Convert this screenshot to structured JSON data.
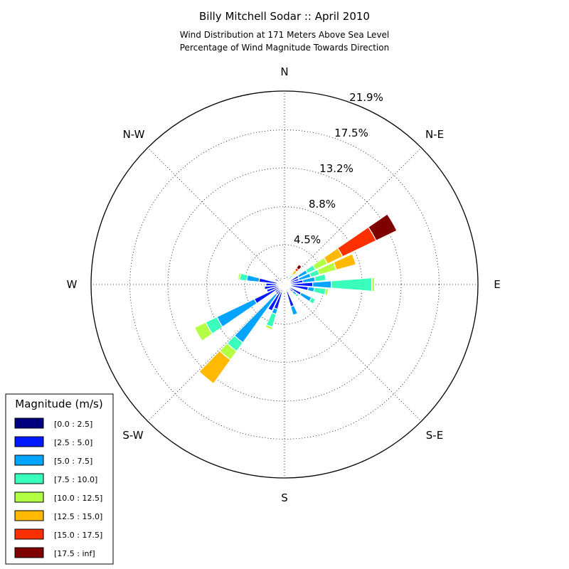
{
  "chart_data": {
    "type": "windrose",
    "title": "Billy Mitchell Sodar :: April 2010",
    "subtitle_lines": [
      "Wind Distribution at 171 Meters Above Sea Level",
      "Percentage of Wind Magnitude Towards Direction"
    ],
    "directions": [
      "N",
      "N-E",
      "E",
      "S-E",
      "S",
      "S-W",
      "W",
      "N-W"
    ],
    "ring_labels": [
      "4.5%",
      "8.8%",
      "13.2%",
      "17.5%",
      "21.9%"
    ],
    "ring_values": [
      4.5,
      8.8,
      13.2,
      17.5,
      21.9
    ],
    "rmax": 21.9,
    "sector_width_deg": 10,
    "legend": {
      "title": "Magnitude (m/s)",
      "bins": [
        {
          "label": "[0.0 : 2.5]",
          "color": "#00007f"
        },
        {
          "label": "[2.5 : 5.0]",
          "color": "#0019ff"
        },
        {
          "label": "[5.0 : 7.5]",
          "color": "#00a4ff"
        },
        {
          "label": "[7.5 : 10.0]",
          "color": "#3affbc"
        },
        {
          "label": "[10.0 : 12.5]",
          "color": "#b2ff43"
        },
        {
          "label": "[12.5 : 15.0]",
          "color": "#ffb900"
        },
        {
          "label": "[15.0 : 17.5]",
          "color": "#ff3000"
        },
        {
          "label": "[17.5 : inf]",
          "color": "#7f0000"
        }
      ]
    },
    "sectors": [
      {
        "bearing": 0,
        "values": [
          0.4,
          0,
          0,
          0,
          0,
          0,
          0,
          0
        ]
      },
      {
        "bearing": 20,
        "values": [
          0.7,
          0.3,
          0,
          0,
          0,
          0,
          0,
          0
        ]
      },
      {
        "bearing": 30,
        "values": [
          0.5,
          0.3,
          0.1,
          0,
          0,
          0,
          0,
          0
        ]
      },
      {
        "bearing": 40,
        "values": [
          0.4,
          0.4,
          0.2,
          0.3,
          0.2,
          0.5,
          0.3,
          0.5
        ]
      },
      {
        "bearing": 60,
        "values": [
          0.8,
          1.0,
          1.1,
          1.0,
          1.5,
          1.9,
          4.2,
          2.6
        ]
      },
      {
        "bearing": 70,
        "values": [
          0.6,
          1.1,
          1.4,
          1.0,
          2.0,
          2.3,
          0,
          0
        ]
      },
      {
        "bearing": 80,
        "values": [
          0.6,
          1.5,
          1.4,
          1.2,
          0,
          0,
          0,
          0
        ]
      },
      {
        "bearing": 90,
        "values": [
          0.8,
          2.4,
          2.1,
          4.6,
          0.3,
          0,
          0,
          0
        ]
      },
      {
        "bearing": 100,
        "values": [
          0.7,
          2.0,
          0.7,
          1.3,
          0.3,
          0,
          0,
          0
        ]
      },
      {
        "bearing": 120,
        "values": [
          0.6,
          1.5,
          1.3,
          0.5,
          0,
          0,
          0,
          0
        ]
      },
      {
        "bearing": 130,
        "values": [
          0.6,
          0.6,
          0.5,
          0.3,
          0,
          0,
          0,
          0
        ]
      },
      {
        "bearing": 150,
        "values": [
          0.5,
          0.3,
          0.1,
          0,
          0,
          0,
          0,
          0
        ]
      },
      {
        "bearing": 160,
        "values": [
          0.8,
          1.8,
          1.0,
          0,
          0,
          0,
          0,
          0
        ]
      },
      {
        "bearing": 180,
        "values": [
          0.5,
          0.3,
          0,
          0,
          0,
          0,
          0,
          0
        ]
      },
      {
        "bearing": 200,
        "values": [
          0.9,
          2.0,
          0.6,
          1.5,
          0.3,
          0,
          0,
          0
        ]
      },
      {
        "bearing": 210,
        "values": [
          0.9,
          2.4,
          0,
          0,
          0,
          0,
          0,
          0
        ]
      },
      {
        "bearing": 220,
        "values": [
          0.8,
          0.6,
          6.7,
          1.2,
          1.2,
          3.3,
          0,
          0
        ]
      },
      {
        "bearing": 230,
        "values": [
          0.5,
          0.8,
          0,
          0,
          0,
          0,
          0,
          0
        ]
      },
      {
        "bearing": 240,
        "values": [
          0.7,
          3.1,
          4.7,
          1.4,
          1.4,
          0,
          0,
          0
        ]
      },
      {
        "bearing": 250,
        "values": [
          0.6,
          1.5,
          0,
          0,
          0,
          0,
          0,
          0
        ]
      },
      {
        "bearing": 260,
        "values": [
          0.8,
          1.5,
          0.1,
          0,
          0,
          0,
          0,
          0
        ]
      },
      {
        "bearing": 270,
        "values": [
          0.9,
          1.2,
          0.1,
          0,
          0,
          0,
          0,
          0
        ]
      },
      {
        "bearing": 280,
        "values": [
          0.8,
          2.1,
          1.4,
          0.8,
          0.2,
          0,
          0,
          0
        ]
      },
      {
        "bearing": 300,
        "values": [
          0.7,
          0.5,
          0,
          0,
          0,
          0,
          0,
          0
        ]
      },
      {
        "bearing": 330,
        "values": [
          0.6,
          0.3,
          0,
          0,
          0,
          0,
          0,
          0
        ]
      }
    ]
  }
}
